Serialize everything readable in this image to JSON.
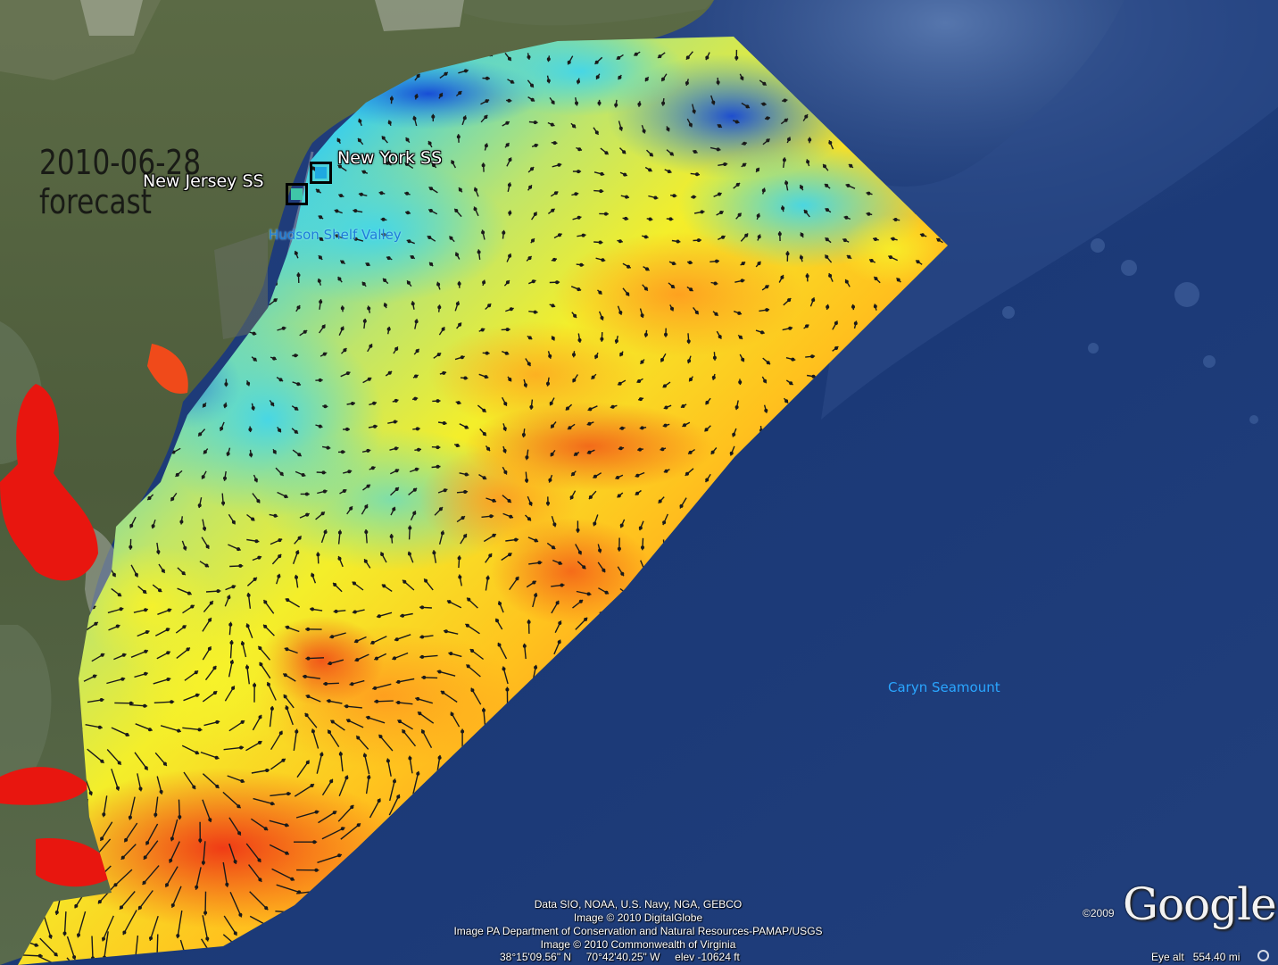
{
  "overlay": {
    "date_line": "2010-06-28",
    "kind_line": "forecast"
  },
  "places": {
    "new_york": "New York SS",
    "new_jersey": "New Jersey SS",
    "hudson": "Hudson Shelf Valley",
    "caryn": "Caryn Seamount"
  },
  "credits": [
    "Data SIO, NOAA, U.S. Navy, NGA, GEBCO",
    "Image © 2010 DigitalGlobe",
    "Image PA Department of Conservation and Natural Resources-PAMAP/USGS",
    "Image © 2010 Commonwealth of Virginia"
  ],
  "status": {
    "coordinates": "38°15'09.56\" N     70°42'40.25\" W     elev -10624 ft",
    "eye_alt": "Eye alt   554.40 mi"
  },
  "branding": {
    "copyright": "©2009",
    "logo": "Google"
  },
  "colors": {
    "ocean": "#1b3a7a",
    "land": "#4f5e3c",
    "marker_new_york": "#1fa8e0",
    "marker_new_jersey": "#3fc6a8",
    "label_blue": "#2aa6ff"
  },
  "icons": {
    "compass": "compass-ring-icon"
  }
}
